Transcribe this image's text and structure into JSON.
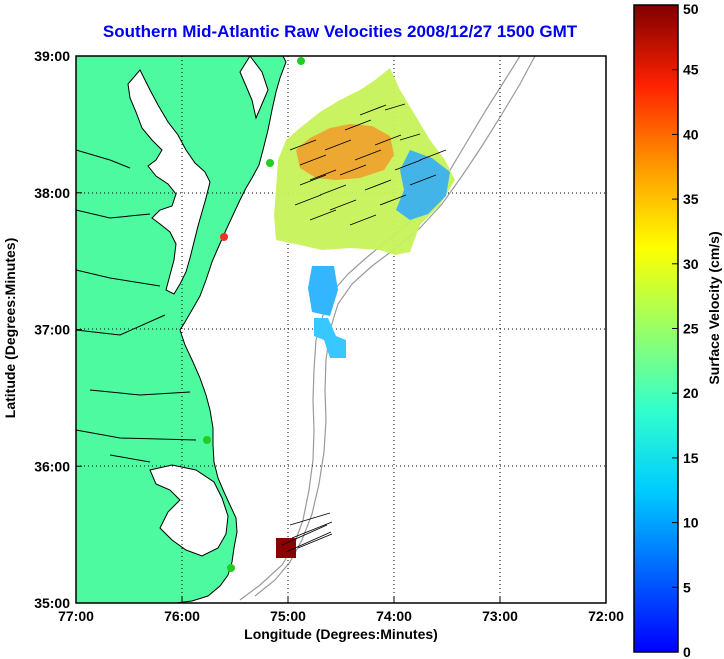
{
  "title": "Southern Mid-Atlantic Raw Velocities 2008/12/27 1500 GMT",
  "xlabel": "Longitude (Degrees:Minutes)",
  "ylabel": "Latitude (Degrees:Minutes)",
  "x_ticks": [
    "77:00",
    "76:00",
    "75:00",
    "74:00",
    "73:00",
    "72:00"
  ],
  "y_ticks": [
    "39:00",
    "38:00",
    "37:00",
    "36:00",
    "35:00"
  ],
  "colorbar": {
    "label": "Surface Velocity (cm/s)",
    "ticks": [
      "0",
      "5",
      "10",
      "15",
      "20",
      "25",
      "30",
      "35",
      "40",
      "45",
      "50"
    ]
  },
  "colors": {
    "land": "#4dfa9f",
    "coast": "#000000",
    "bathymetry": "#9a9a9a",
    "title": "#0000ee",
    "station": "#22cc22",
    "station_alt": "#ee3322"
  }
}
